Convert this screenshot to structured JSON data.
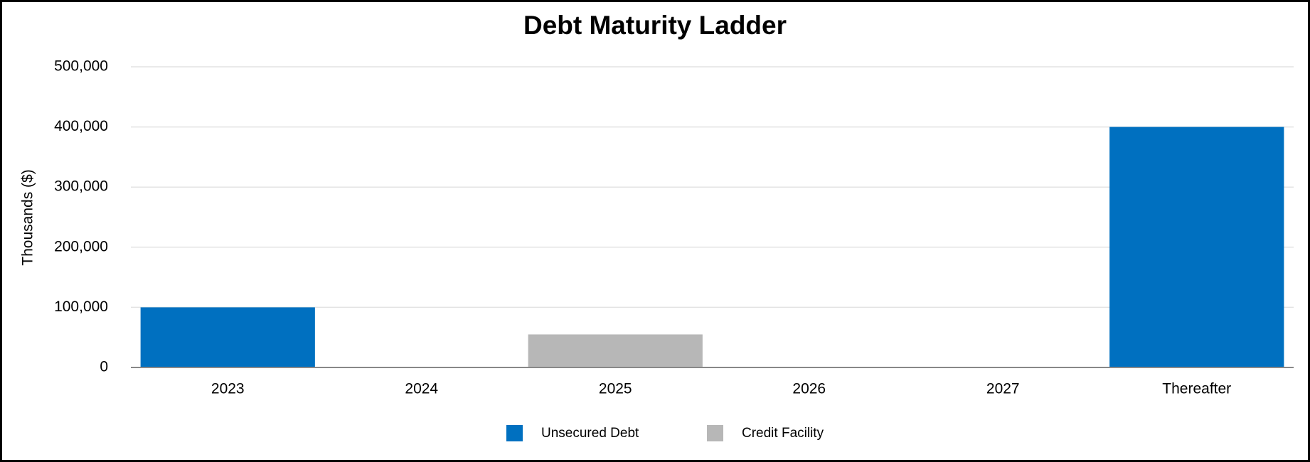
{
  "chart_data": {
    "type": "stacked_bar",
    "title": "Debt Maturity Ladder",
    "y_label": "Thousands ($)",
    "categories": [
      "2023",
      "2024",
      "2025",
      "2026",
      "2027",
      "Thereafter"
    ],
    "series": [
      {
        "name": "Unsecured Debt",
        "color": "#0070c0",
        "values": [
          100000,
          0,
          0,
          0,
          0,
          400000
        ]
      },
      {
        "name": "Credit Facility",
        "color": "#b7b7b7",
        "values": [
          0,
          0,
          55000,
          0,
          0,
          0
        ]
      }
    ],
    "ylim": [
      0,
      500000
    ],
    "yticks": [
      0,
      {
        "value": 100000,
        "label": "100,000"
      },
      {
        "value": 200000,
        "label": "200,000"
      },
      {
        "value": 300000,
        "label": "300,000"
      },
      {
        "value": 400000,
        "label": "400,000"
      },
      {
        "value": 500000,
        "label": "500,000"
      }
    ],
    "grid": true,
    "legend": "bottom"
  }
}
